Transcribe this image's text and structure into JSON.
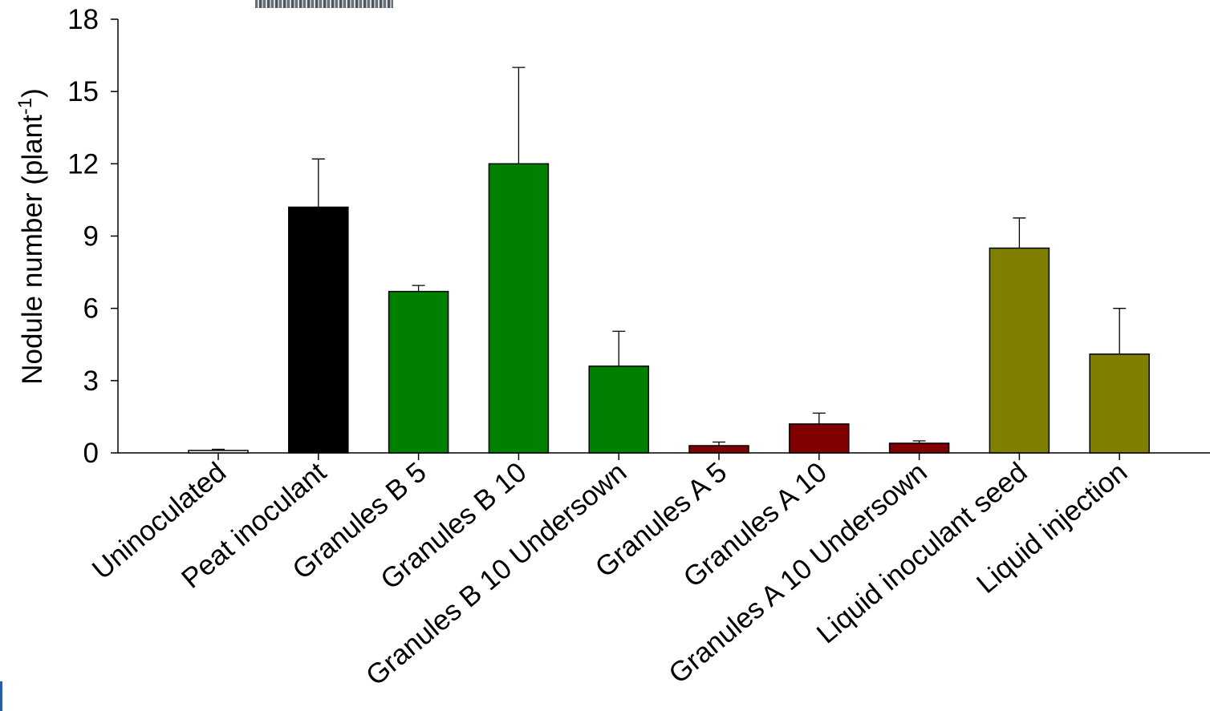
{
  "chart_data": {
    "type": "bar",
    "title": "",
    "xlabel": "",
    "ylabel": "Nodule number (plant",
    "ylabel_superscript": "-1",
    "ylabel_suffix": ")",
    "ylim": [
      0,
      18
    ],
    "yticks": [
      0,
      3,
      6,
      9,
      12,
      15,
      18
    ],
    "grid": false,
    "categories": [
      "Uninoculated",
      "Peat inoculant",
      "Granules B 5",
      "Granules B 10",
      "Granules B 10 Undersown",
      "Granules A 5",
      "Granules A 10",
      "Granules A 10 Undersown",
      "Liquid inoculant seed",
      "Liquid injection"
    ],
    "values": [
      0.1,
      10.2,
      6.7,
      12.0,
      3.6,
      0.3,
      1.2,
      0.4,
      8.5,
      4.1
    ],
    "error_bars": [
      0.05,
      2.0,
      0.25,
      4.0,
      1.45,
      0.15,
      0.45,
      0.1,
      1.25,
      1.9
    ],
    "bar_colors": [
      "#ffffff",
      "#000000",
      "#008000",
      "#008000",
      "#008000",
      "#800000",
      "#800000",
      "#800000",
      "#808000",
      "#808000"
    ]
  }
}
